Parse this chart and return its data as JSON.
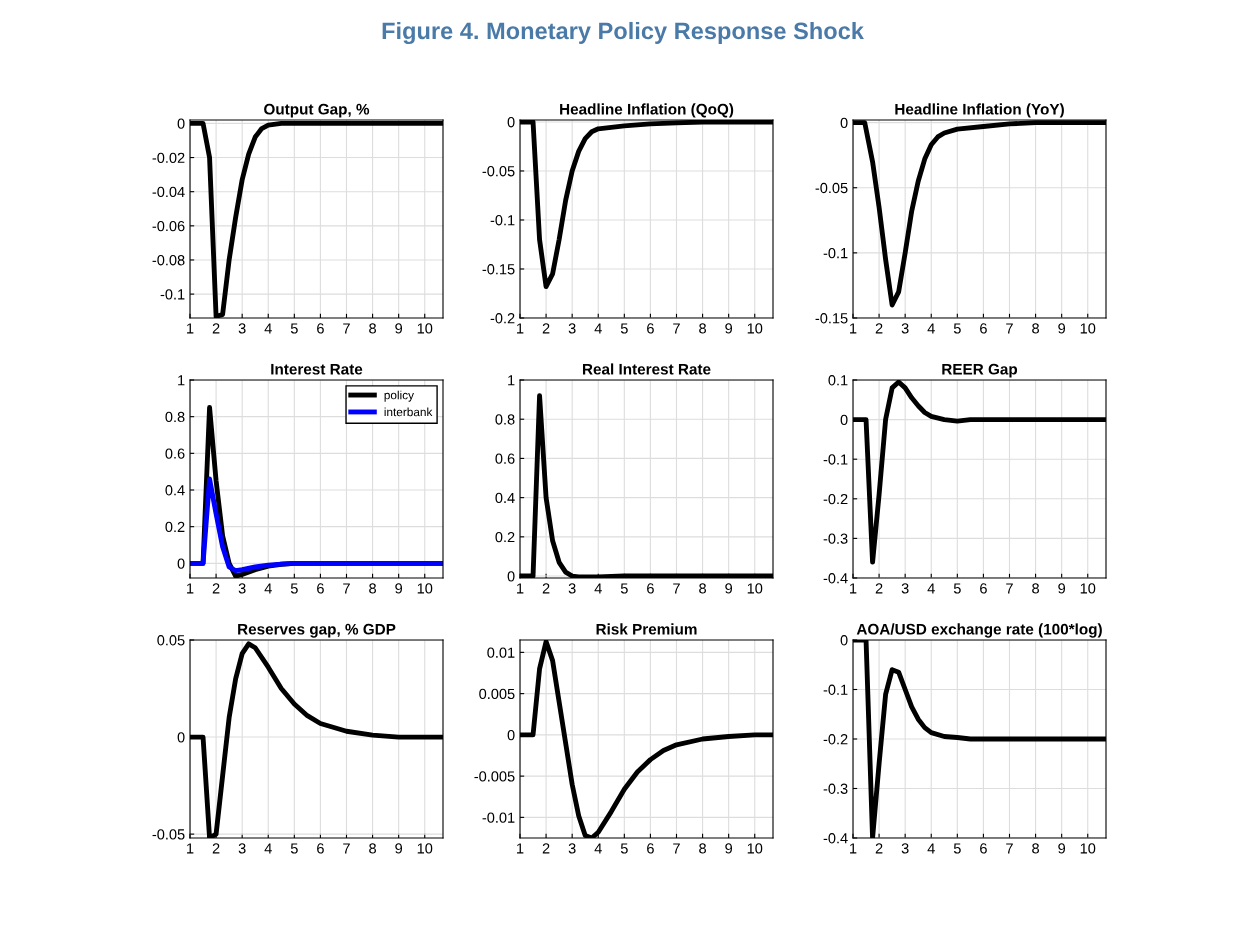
{
  "chart_data": [
    {
      "type": "other",
      "title": "Figure 4. Monetary Policy Response Shock"
    },
    {
      "type": "line",
      "title": "Output Gap, %",
      "xlim": [
        1,
        10.7
      ],
      "xticks": [
        1,
        2,
        3,
        4,
        5,
        6,
        7,
        8,
        9,
        10
      ],
      "ylim": [
        -0.114,
        0.002
      ],
      "yticks": [
        -0.1,
        -0.08,
        -0.06,
        -0.04,
        -0.02,
        0
      ],
      "grid": true,
      "legend": false,
      "x": [
        1,
        1.5,
        1.75,
        2,
        2.25,
        2.5,
        2.75,
        3,
        3.25,
        3.5,
        3.75,
        4,
        4.5,
        10.7
      ],
      "series": [
        {
          "color": "#000000",
          "values": [
            0,
            0,
            -0.02,
            -0.113,
            -0.112,
            -0.08,
            -0.055,
            -0.033,
            -0.018,
            -0.008,
            -0.003,
            -0.001,
            0,
            0
          ]
        }
      ]
    },
    {
      "type": "line",
      "title": "Headline Inflation (QoQ)",
      "xlim": [
        1,
        10.7
      ],
      "xticks": [
        1,
        2,
        3,
        4,
        5,
        6,
        7,
        8,
        9,
        10
      ],
      "ylim": [
        -0.2,
        0.002
      ],
      "yticks": [
        -0.2,
        -0.15,
        -0.1,
        -0.05,
        0
      ],
      "grid": true,
      "legend": false,
      "x": [
        1,
        1.5,
        1.75,
        2,
        2.25,
        2.5,
        2.75,
        3,
        3.25,
        3.5,
        3.75,
        4,
        5,
        6,
        7,
        8,
        10.7
      ],
      "series": [
        {
          "color": "#000000",
          "values": [
            0,
            0,
            -0.12,
            -0.168,
            -0.155,
            -0.12,
            -0.08,
            -0.05,
            -0.03,
            -0.017,
            -0.01,
            -0.007,
            -0.004,
            -0.002,
            -0.001,
            0,
            0
          ]
        }
      ]
    },
    {
      "type": "line",
      "title": "Headline Inflation (YoY)",
      "xlim": [
        1,
        10.7
      ],
      "xticks": [
        1,
        2,
        3,
        4,
        5,
        6,
        7,
        8,
        9,
        10
      ],
      "ylim": [
        -0.15,
        0.002
      ],
      "yticks": [
        -0.15,
        -0.1,
        -0.05,
        0
      ],
      "grid": true,
      "legend": false,
      "x": [
        1,
        1.45,
        1.75,
        2,
        2.25,
        2.5,
        2.75,
        3,
        3.25,
        3.5,
        3.75,
        4,
        4.25,
        4.5,
        5,
        6,
        7,
        8,
        10.7
      ],
      "series": [
        {
          "color": "#000000",
          "values": [
            0,
            0,
            -0.03,
            -0.065,
            -0.105,
            -0.14,
            -0.13,
            -0.1,
            -0.068,
            -0.045,
            -0.028,
            -0.017,
            -0.011,
            -0.008,
            -0.005,
            -0.003,
            -0.001,
            0,
            0
          ]
        }
      ]
    },
    {
      "type": "line",
      "title": "Interest Rate",
      "xlim": [
        1,
        10.7
      ],
      "xticks": [
        1,
        2,
        3,
        4,
        5,
        6,
        7,
        8,
        9,
        10
      ],
      "ylim": [
        -0.08,
        1
      ],
      "yticks": [
        0,
        0.2,
        0.4,
        0.6,
        0.8,
        1
      ],
      "grid": true,
      "legend": "top right",
      "x": [
        1,
        1.5,
        1.75,
        2,
        2.25,
        2.5,
        2.75,
        3,
        3.5,
        4,
        4.5,
        5,
        10.7
      ],
      "series": [
        {
          "name": "policy",
          "color": "#000000",
          "values": [
            0,
            0,
            0.85,
            0.45,
            0.15,
            0,
            -0.07,
            -0.06,
            -0.035,
            -0.015,
            -0.005,
            0,
            0
          ]
        },
        {
          "name": "interbank",
          "color": "#0000ff",
          "values": [
            0,
            0,
            0.46,
            0.27,
            0.09,
            -0.02,
            -0.04,
            -0.035,
            -0.02,
            -0.01,
            -0.004,
            0,
            0
          ]
        }
      ]
    },
    {
      "type": "line",
      "title": "Real Interest Rate",
      "xlim": [
        1,
        10.7
      ],
      "xticks": [
        1,
        2,
        3,
        4,
        5,
        6,
        7,
        8,
        9,
        10
      ],
      "ylim": [
        -0.01,
        1
      ],
      "yticks": [
        0,
        0.2,
        0.4,
        0.6,
        0.8,
        1
      ],
      "grid": true,
      "legend": false,
      "x": [
        1,
        1.5,
        1.75,
        2,
        2.25,
        2.5,
        2.75,
        3,
        3.25,
        4,
        5,
        10.7
      ],
      "series": [
        {
          "color": "#000000",
          "values": [
            0,
            0,
            0.92,
            0.4,
            0.18,
            0.07,
            0.02,
            0,
            -0.005,
            -0.005,
            0,
            0
          ]
        }
      ]
    },
    {
      "type": "line",
      "title": "REER Gap",
      "xlim": [
        1,
        10.7
      ],
      "xticks": [
        1,
        2,
        3,
        4,
        5,
        6,
        7,
        8,
        9,
        10
      ],
      "ylim": [
        -0.4,
        0.1
      ],
      "yticks": [
        -0.4,
        -0.3,
        -0.2,
        -0.1,
        0,
        0.1
      ],
      "grid": true,
      "legend": false,
      "x": [
        1,
        1.5,
        1.75,
        2,
        2.25,
        2.5,
        2.75,
        3,
        3.25,
        3.5,
        3.75,
        4,
        4.5,
        5,
        5.5,
        10.7
      ],
      "series": [
        {
          "color": "#000000",
          "values": [
            0,
            0,
            -0.36,
            -0.19,
            0,
            0.08,
            0.095,
            0.08,
            0.055,
            0.035,
            0.018,
            0.008,
            0,
            -0.004,
            0,
            0
          ]
        }
      ]
    },
    {
      "type": "line",
      "title": "Reserves gap, % GDP",
      "xlim": [
        1,
        10.7
      ],
      "xticks": [
        1,
        2,
        3,
        4,
        5,
        6,
        7,
        8,
        9,
        10
      ],
      "ylim": [
        -0.052,
        0.05
      ],
      "yticks": [
        -0.05,
        0,
        0.05
      ],
      "grid": true,
      "legend": false,
      "x": [
        1,
        1.5,
        1.75,
        2,
        2.25,
        2.5,
        2.75,
        3,
        3.25,
        3.5,
        4,
        4.5,
        5,
        5.5,
        6,
        7,
        8,
        9,
        10.7
      ],
      "series": [
        {
          "color": "#000000",
          "values": [
            0,
            0,
            -0.052,
            -0.05,
            -0.02,
            0.01,
            0.03,
            0.043,
            0.048,
            0.046,
            0.036,
            0.025,
            0.017,
            0.011,
            0.007,
            0.003,
            0.001,
            0,
            0
          ]
        }
      ]
    },
    {
      "type": "line",
      "title": "Risk Premium",
      "xlim": [
        1,
        10.7
      ],
      "xticks": [
        1,
        2,
        3,
        4,
        5,
        6,
        7,
        8,
        9,
        10
      ],
      "ylim": [
        -0.0125,
        0.0115
      ],
      "yticks": [
        -0.01,
        -0.005,
        0,
        0.005,
        0.01
      ],
      "grid": true,
      "legend": false,
      "x": [
        1,
        1.5,
        1.75,
        2,
        2.25,
        2.5,
        2.75,
        3,
        3.25,
        3.5,
        3.75,
        4,
        4.5,
        5,
        5.5,
        6,
        6.5,
        7,
        8,
        9,
        10,
        10.7
      ],
      "series": [
        {
          "color": "#000000",
          "values": [
            0,
            0,
            0.008,
            0.0113,
            0.009,
            0.004,
            -0.001,
            -0.006,
            -0.0098,
            -0.0122,
            -0.0125,
            -0.0118,
            -0.0093,
            -0.0066,
            -0.0045,
            -0.003,
            -0.0019,
            -0.0012,
            -0.0005,
            -0.0002,
            0,
            0
          ]
        }
      ]
    },
    {
      "type": "line",
      "title": "AOA/USD exchange rate (100*log)",
      "xlim": [
        1,
        10.7
      ],
      "xticks": [
        1,
        2,
        3,
        4,
        5,
        6,
        7,
        8,
        9,
        10
      ],
      "ylim": [
        -0.4,
        0
      ],
      "yticks": [
        -0.4,
        -0.3,
        -0.2,
        -0.1,
        0
      ],
      "grid": true,
      "legend": false,
      "x": [
        1,
        1.5,
        1.75,
        2,
        2.25,
        2.5,
        2.75,
        3,
        3.25,
        3.5,
        3.75,
        4,
        4.5,
        5,
        5.5,
        10.7
      ],
      "series": [
        {
          "color": "#000000",
          "values": [
            0,
            0,
            -0.4,
            -0.25,
            -0.11,
            -0.06,
            -0.065,
            -0.1,
            -0.135,
            -0.16,
            -0.177,
            -0.187,
            -0.195,
            -0.197,
            -0.2,
            -0.2
          ]
        }
      ]
    }
  ]
}
